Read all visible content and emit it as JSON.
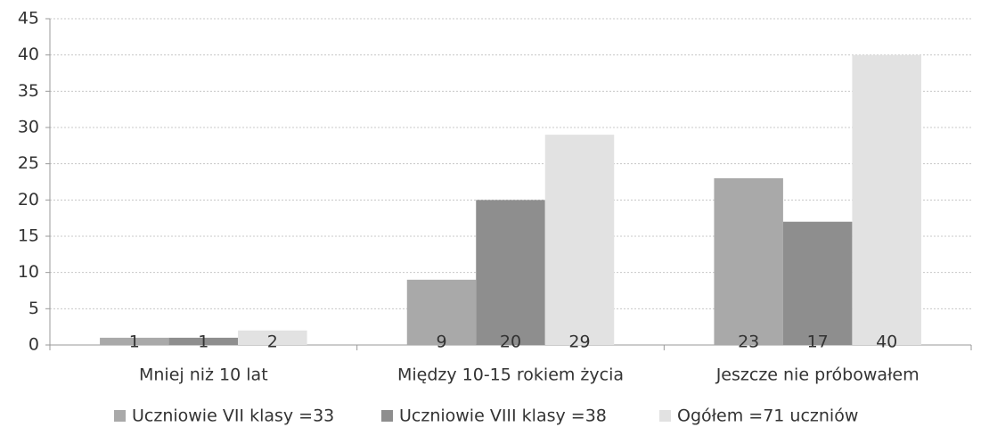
{
  "chart_data": {
    "type": "bar",
    "categories": [
      "Mniej niż 10 lat",
      "Między 10-15 rokiem życia",
      "Jeszcze nie próbowałem"
    ],
    "series": [
      {
        "name": "Uczniowie VII klasy =33",
        "color": "#a9a9a9",
        "values": [
          1,
          9,
          23
        ]
      },
      {
        "name": "Uczniowie VIII klasy =38",
        "color": "#8e8e8e",
        "values": [
          1,
          20,
          17
        ]
      },
      {
        "name": "Ogółem =71 uczniów",
        "color": "#e2e2e2",
        "values": [
          2,
          29,
          40
        ]
      }
    ],
    "ylim": [
      0,
      45
    ],
    "yticks": [
      0,
      5,
      10,
      15,
      20,
      25,
      30,
      35,
      40,
      45
    ],
    "grid": true,
    "legend": "bottom",
    "data_labels": true
  }
}
